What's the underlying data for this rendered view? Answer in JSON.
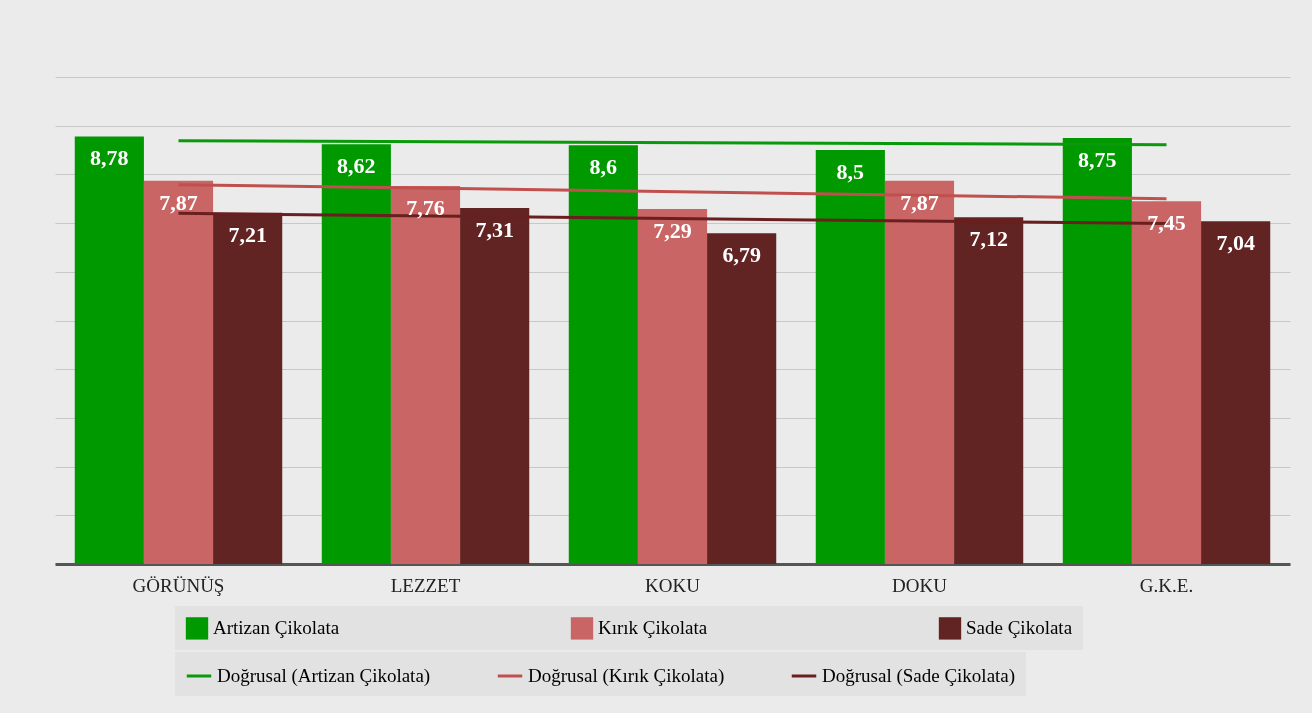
{
  "chart_data": {
    "type": "bar",
    "categories": [
      "GÖRÜNÜŞ",
      "LEZZET",
      "KOKU",
      "DOKU",
      "G.K.E."
    ],
    "series": [
      {
        "name": "Artizan Çikolata",
        "color": "#009900",
        "values": [
          8.78,
          8.62,
          8.6,
          8.5,
          8.75
        ],
        "value_labels": [
          "8,78",
          "8,62",
          "8,6",
          "8,5",
          "8,75"
        ]
      },
      {
        "name": "Kırık Çikolata",
        "color": "#c96565",
        "values": [
          7.87,
          7.76,
          7.29,
          7.87,
          7.45
        ],
        "value_labels": [
          "7,87",
          "7,76",
          "7,29",
          "7,87",
          "7,45"
        ]
      },
      {
        "name": "Sade Çikolata",
        "color": "#622323",
        "values": [
          7.21,
          7.31,
          6.79,
          7.12,
          7.04
        ],
        "value_labels": [
          "7,21",
          "7,31",
          "6,79",
          "7,12",
          "7,04"
        ]
      },
      {
        "name": "Doğrusal (Artizan Çikolata)",
        "type": "line",
        "color": "#0a990a",
        "x": [
          "GÖRÜNÜŞ",
          "G.K.E."
        ],
        "values": [
          8.69,
          8.61
        ]
      },
      {
        "name": "Doğrusal (Kırık Çikolata)",
        "type": "line",
        "color": "#c0504d",
        "x": [
          "GÖRÜNÜŞ",
          "G.K.E."
        ],
        "values": [
          7.79,
          7.5
        ]
      },
      {
        "name": "Doğrusal (Sade Çikolata)",
        "type": "line",
        "color": "#6a1f1f",
        "x": [
          "GÖRÜNÜŞ",
          "G.K.E."
        ],
        "values": [
          7.2,
          6.99
        ]
      }
    ],
    "ylim": [
      0,
      10
    ],
    "yticks": [
      {
        "value": 0,
        "label": null
      },
      {
        "value": 1,
        "label": null
      },
      {
        "value": 2,
        "label": null
      },
      {
        "value": 3,
        "label": null
      },
      {
        "value": 4,
        "label": null
      },
      {
        "value": 5,
        "label": null
      },
      {
        "value": 6,
        "label": null
      },
      {
        "value": 7,
        "label": null
      },
      {
        "value": 8,
        "label": null
      },
      {
        "value": 9,
        "label": null
      },
      {
        "value": 10,
        "label": null
      }
    ],
    "grid": "y",
    "legend": "bottom",
    "tick_labels": "x"
  }
}
